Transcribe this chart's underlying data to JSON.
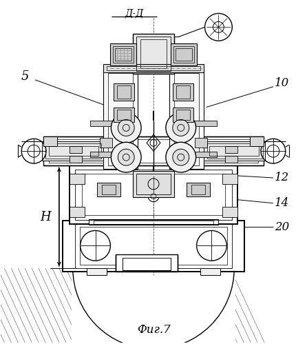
{
  "bg_color": "#ffffff",
  "line_color": "#000000",
  "title": "Фиг.7",
  "section_label": "Д-Д",
  "labels": [
    "5",
    "10",
    "12",
    "14",
    "20",
    "H"
  ]
}
